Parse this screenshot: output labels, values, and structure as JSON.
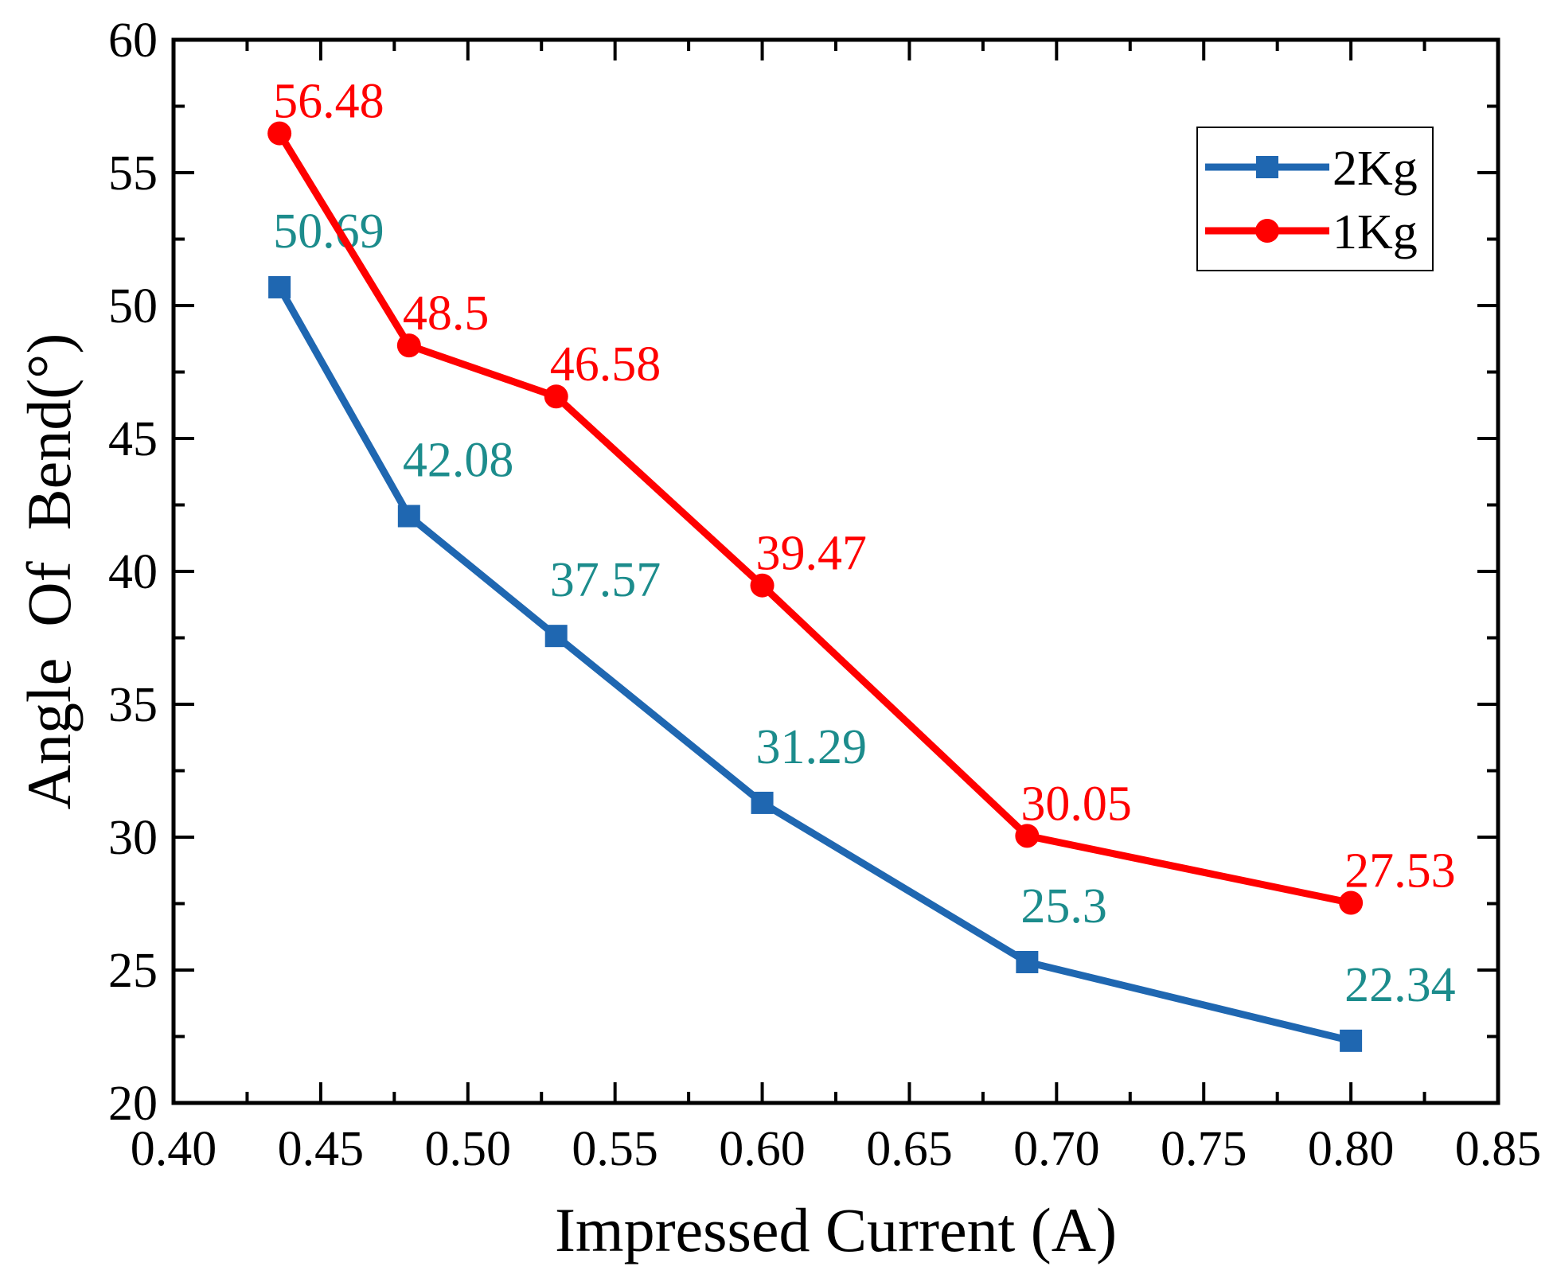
{
  "chart_data": {
    "type": "line",
    "title": "",
    "xlabel": "Impressed Current (A)",
    "ylabel": "Angle  Of  Bend(°)",
    "xlim": [
      0.4,
      0.85
    ],
    "ylim": [
      20,
      60
    ],
    "x_ticks": [
      "0.40",
      "0.45",
      "0.50",
      "0.55",
      "0.60",
      "0.65",
      "0.70",
      "0.75",
      "0.80",
      "0.85"
    ],
    "y_ticks": [
      "20",
      "25",
      "30",
      "35",
      "40",
      "45",
      "50",
      "55",
      "60"
    ],
    "grid": false,
    "legend_position": "top-right",
    "series": [
      {
        "name": "2Kg",
        "color": "#1F67B1",
        "label_color": "#1C8C8C",
        "marker": "square",
        "x": [
          0.436,
          0.48,
          0.53,
          0.6,
          0.69,
          0.8
        ],
        "y": [
          50.69,
          42.08,
          37.57,
          31.29,
          25.3,
          22.34
        ],
        "labels": [
          "50.69",
          "42.08",
          "37.57",
          "31.29",
          "25.3",
          "22.34"
        ]
      },
      {
        "name": "1Kg",
        "color": "#FF0000",
        "label_color": "#FF0000",
        "marker": "circle",
        "x": [
          0.436,
          0.48,
          0.53,
          0.6,
          0.69,
          0.8
        ],
        "y": [
          56.48,
          48.5,
          46.58,
          39.47,
          30.05,
          27.53
        ],
        "labels": [
          "56.48",
          "48.5",
          "46.58",
          "39.47",
          "30.05",
          "27.53"
        ]
      }
    ]
  }
}
